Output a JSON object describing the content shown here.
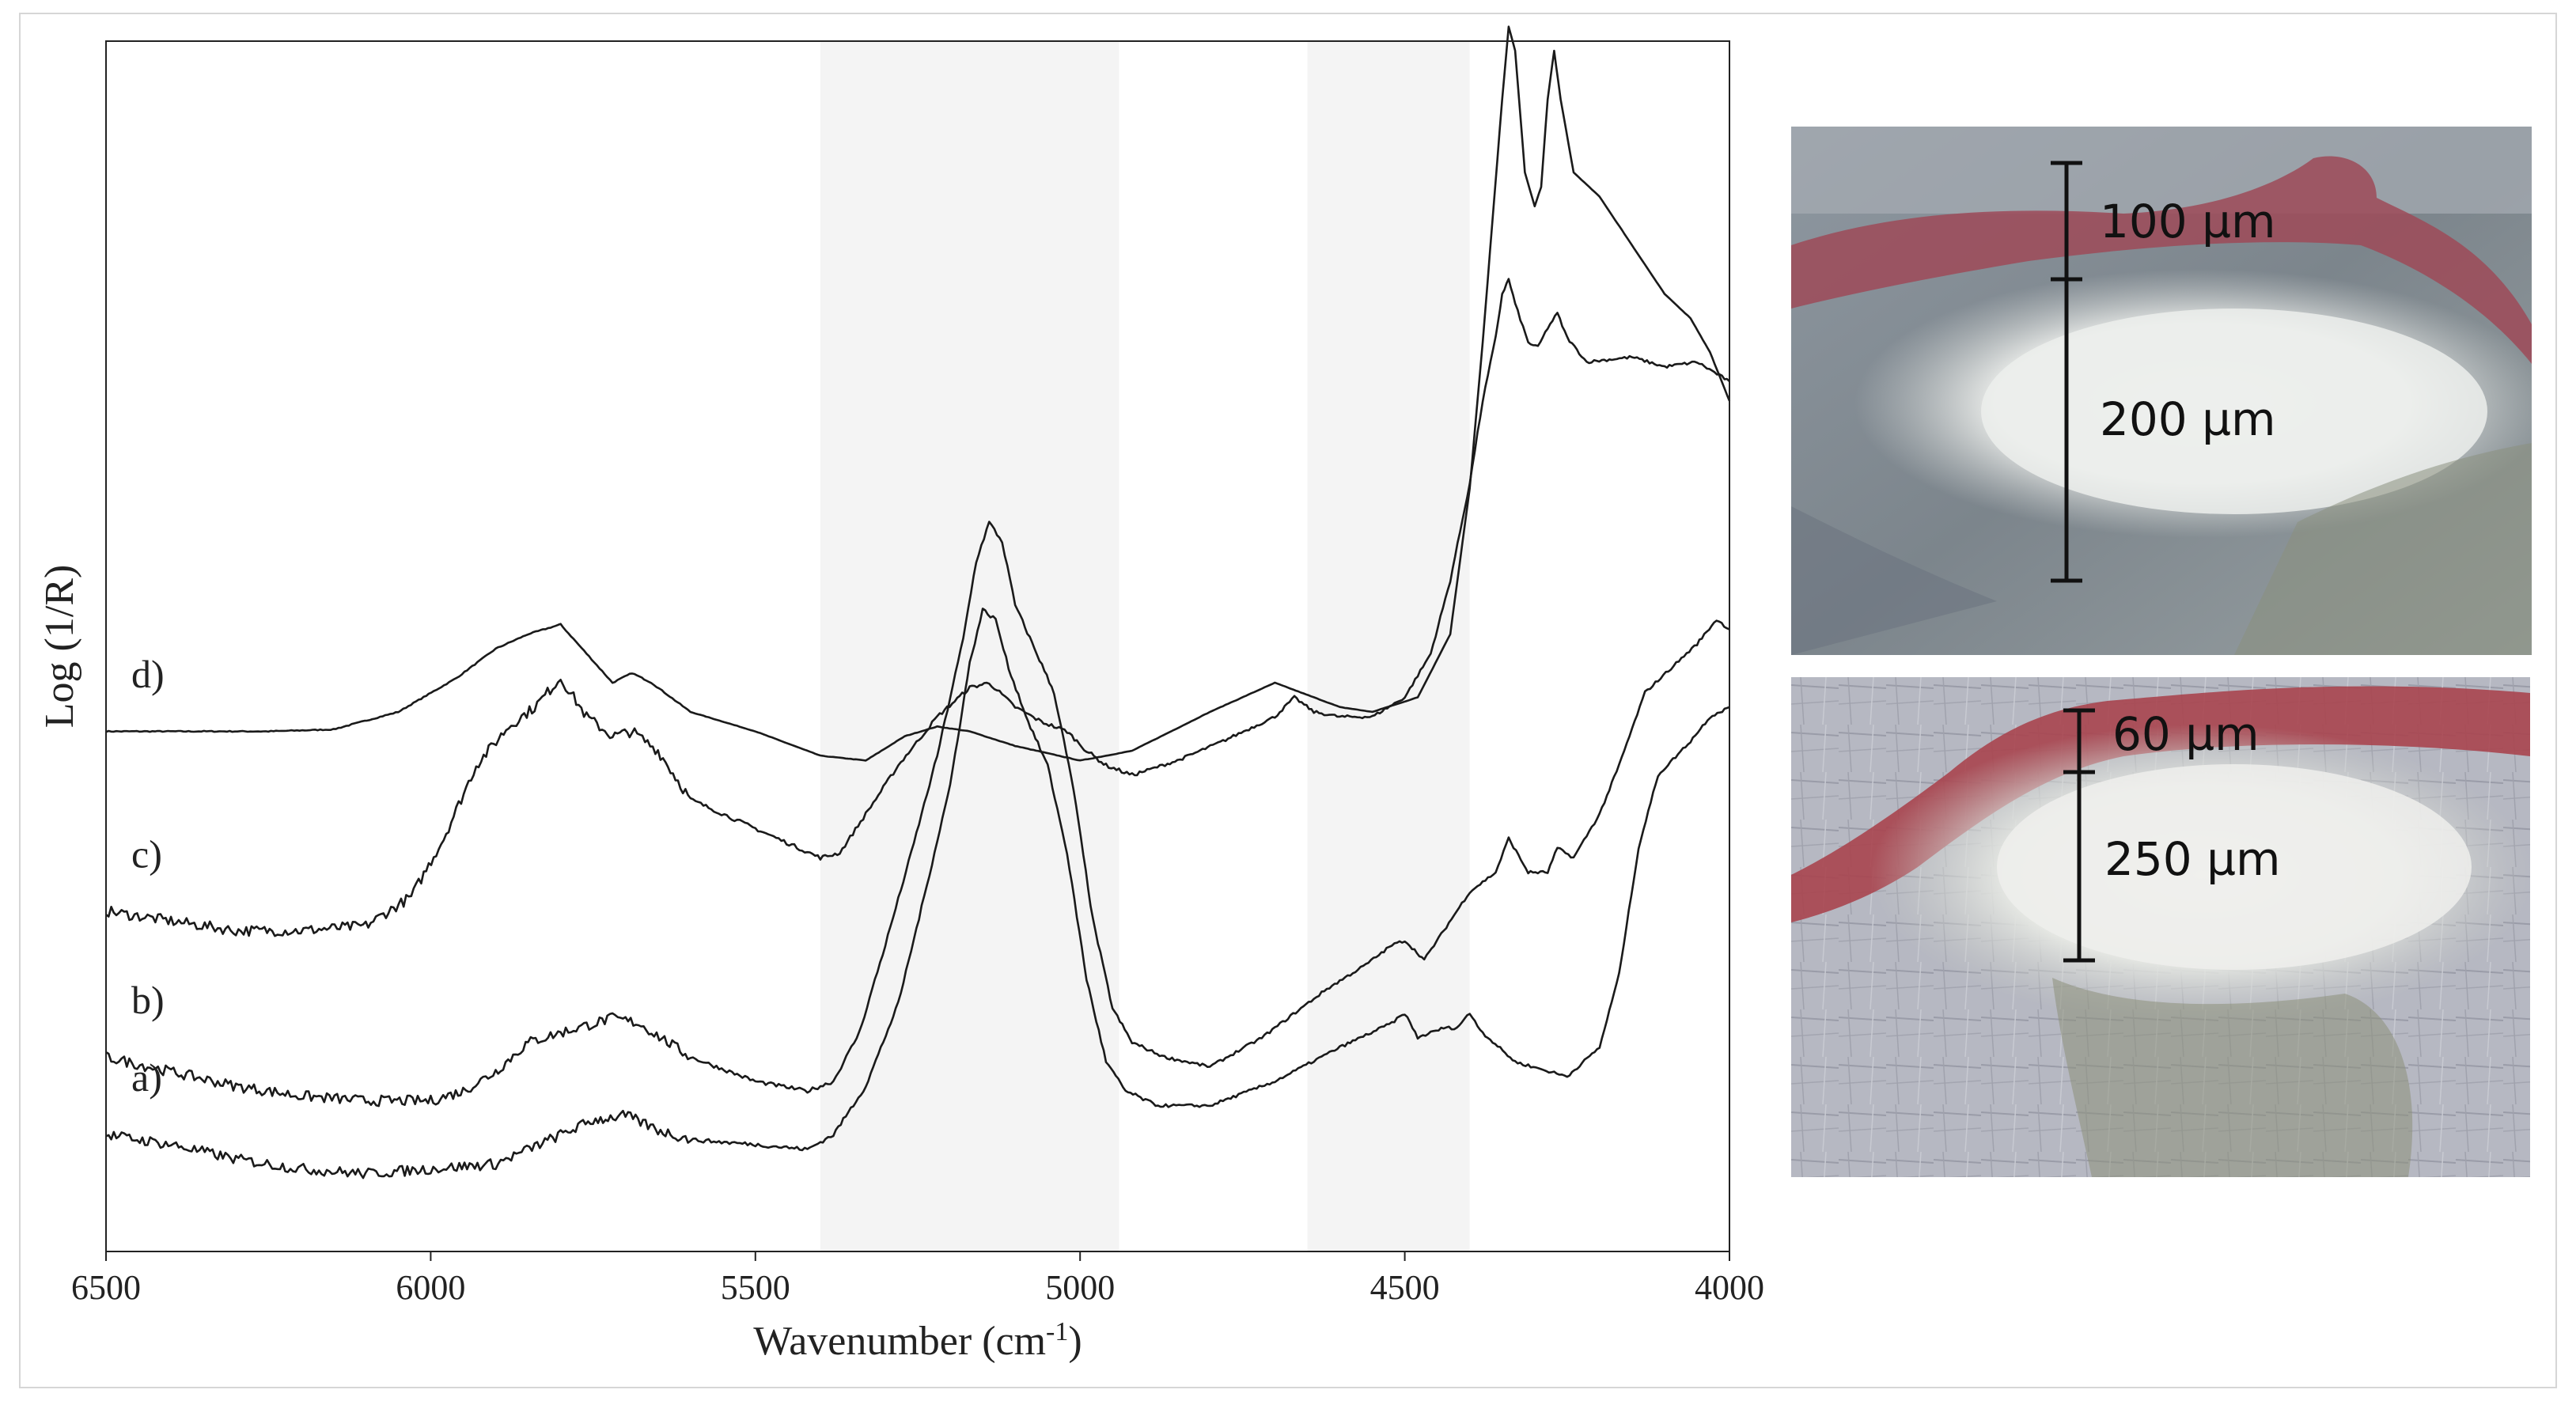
{
  "chart_data": {
    "type": "line",
    "xlabel_main": "Wavenumber (cm",
    "xlabel_sup": "-1",
    "xlabel_close": ")",
    "ylabel": "Log (1/R)",
    "xlim": [
      6500,
      4000
    ],
    "x_reversed": true,
    "x_ticks": [
      "6500",
      "6000",
      "5500",
      "5000",
      "4500",
      "4000"
    ],
    "y_ticks": false,
    "grid": false,
    "shaded_regions": [
      [
        5400,
        4940
      ],
      [
        4650,
        4400
      ]
    ],
    "shade_color": "#f4f4f4",
    "line_color": "#1a1a1a",
    "series": [
      {
        "label": "d)",
        "offset": 0.83,
        "points": [
          [
            6500,
            0
          ],
          [
            6250,
            0
          ],
          [
            6150,
            0.004
          ],
          [
            6050,
            0.04
          ],
          [
            5960,
            0.11
          ],
          [
            5900,
            0.17
          ],
          [
            5850,
            0.2
          ],
          [
            5800,
            0.22
          ],
          [
            5760,
            0.16
          ],
          [
            5720,
            0.1
          ],
          [
            5690,
            0.12
          ],
          [
            5660,
            0.1
          ],
          [
            5600,
            0.04
          ],
          [
            5500,
            0
          ],
          [
            5400,
            -0.05
          ],
          [
            5330,
            -0.06
          ],
          [
            5270,
            -0.01
          ],
          [
            5220,
            0.01
          ],
          [
            5170,
            0
          ],
          [
            5100,
            -0.03
          ],
          [
            5000,
            -0.06
          ],
          [
            4920,
            -0.04
          ],
          [
            4800,
            0.04
          ],
          [
            4700,
            0.1
          ],
          [
            4660,
            0.08
          ],
          [
            4600,
            0.05
          ],
          [
            4550,
            0.04
          ],
          [
            4480,
            0.07
          ],
          [
            4430,
            0.2
          ],
          [
            4400,
            0.5
          ],
          [
            4380,
            0.8
          ],
          [
            4365,
            1.05
          ],
          [
            4350,
            1.3
          ],
          [
            4340,
            1.45
          ],
          [
            4330,
            1.4
          ],
          [
            4315,
            1.15
          ],
          [
            4300,
            1.08
          ],
          [
            4290,
            1.12
          ],
          [
            4280,
            1.3
          ],
          [
            4270,
            1.4
          ],
          [
            4260,
            1.3
          ],
          [
            4240,
            1.15
          ],
          [
            4200,
            1.1
          ],
          [
            4150,
            1.0
          ],
          [
            4100,
            0.9
          ],
          [
            4060,
            0.85
          ],
          [
            4030,
            0.78
          ],
          [
            4000,
            0.68
          ]
        ]
      },
      {
        "label": "c)",
        "offset": 0.46,
        "points": [
          [
            6500,
            0
          ],
          [
            6400,
            -0.02
          ],
          [
            6300,
            -0.04
          ],
          [
            6200,
            -0.04
          ],
          [
            6100,
            -0.03
          ],
          [
            6030,
            0.03
          ],
          [
            5980,
            0.15
          ],
          [
            5930,
            0.3
          ],
          [
            5880,
            0.38
          ],
          [
            5840,
            0.42
          ],
          [
            5800,
            0.48
          ],
          [
            5760,
            0.4
          ],
          [
            5720,
            0.36
          ],
          [
            5690,
            0.37
          ],
          [
            5650,
            0.33
          ],
          [
            5600,
            0.23
          ],
          [
            5500,
            0.17
          ],
          [
            5400,
            0.11
          ],
          [
            5370,
            0.12
          ],
          [
            5330,
            0.2
          ],
          [
            5280,
            0.3
          ],
          [
            5220,
            0.4
          ],
          [
            5170,
            0.46
          ],
          [
            5140,
            0.47
          ],
          [
            5100,
            0.42
          ],
          [
            5060,
            0.39
          ],
          [
            5020,
            0.37
          ],
          [
            4990,
            0.33
          ],
          [
            4960,
            0.3
          ],
          [
            4920,
            0.28
          ],
          [
            4850,
            0.31
          ],
          [
            4780,
            0.35
          ],
          [
            4700,
            0.4
          ],
          [
            4670,
            0.44
          ],
          [
            4640,
            0.41
          ],
          [
            4600,
            0.4
          ],
          [
            4550,
            0.4
          ],
          [
            4500,
            0.44
          ],
          [
            4460,
            0.53
          ],
          [
            4430,
            0.68
          ],
          [
            4400,
            0.88
          ],
          [
            4380,
            1.05
          ],
          [
            4360,
            1.18
          ],
          [
            4350,
            1.27
          ],
          [
            4340,
            1.3
          ],
          [
            4330,
            1.25
          ],
          [
            4310,
            1.17
          ],
          [
            4295,
            1.16
          ],
          [
            4280,
            1.2
          ],
          [
            4265,
            1.23
          ],
          [
            4250,
            1.18
          ],
          [
            4220,
            1.13
          ],
          [
            4150,
            1.14
          ],
          [
            4100,
            1.12
          ],
          [
            4050,
            1.13
          ],
          [
            4000,
            1.09
          ]
        ]
      },
      {
        "label": "b)",
        "offset": 0.16,
        "points": [
          [
            6500,
            0
          ],
          [
            6400,
            -0.03
          ],
          [
            6300,
            -0.06
          ],
          [
            6200,
            -0.08
          ],
          [
            6100,
            -0.09
          ],
          [
            6000,
            -0.09
          ],
          [
            5950,
            -0.07
          ],
          [
            5900,
            -0.03
          ],
          [
            5850,
            0.03
          ],
          [
            5800,
            0.05
          ],
          [
            5720,
            0.08
          ],
          [
            5680,
            0.07
          ],
          [
            5600,
            0.0
          ],
          [
            5500,
            -0.05
          ],
          [
            5420,
            -0.07
          ],
          [
            5380,
            -0.05
          ],
          [
            5340,
            0.05
          ],
          [
            5300,
            0.23
          ],
          [
            5260,
            0.42
          ],
          [
            5220,
            0.62
          ],
          [
            5180,
            0.86
          ],
          [
            5160,
            1.02
          ],
          [
            5140,
            1.1
          ],
          [
            5120,
            1.06
          ],
          [
            5100,
            0.93
          ],
          [
            5070,
            0.84
          ],
          [
            5040,
            0.75
          ],
          [
            5010,
            0.55
          ],
          [
            4980,
            0.28
          ],
          [
            4950,
            0.1
          ],
          [
            4920,
            0.03
          ],
          [
            4870,
            0.0
          ],
          [
            4800,
            -0.02
          ],
          [
            4720,
            0.04
          ],
          [
            4620,
            0.14
          ],
          [
            4560,
            0.19
          ],
          [
            4520,
            0.23
          ],
          [
            4500,
            0.24
          ],
          [
            4470,
            0.2
          ],
          [
            4440,
            0.26
          ],
          [
            4400,
            0.34
          ],
          [
            4360,
            0.38
          ],
          [
            4340,
            0.45
          ],
          [
            4310,
            0.38
          ],
          [
            4280,
            0.38
          ],
          [
            4265,
            0.43
          ],
          [
            4240,
            0.41
          ],
          [
            4200,
            0.5
          ],
          [
            4170,
            0.6
          ],
          [
            4130,
            0.75
          ],
          [
            4090,
            0.8
          ],
          [
            4050,
            0.85
          ],
          [
            4020,
            0.9
          ],
          [
            4000,
            0.88
          ]
        ]
      },
      {
        "label": "a)",
        "offset": 0.0,
        "points": [
          [
            6500,
            0
          ],
          [
            6400,
            -0.02
          ],
          [
            6300,
            -0.05
          ],
          [
            6200,
            -0.07
          ],
          [
            6100,
            -0.08
          ],
          [
            6000,
            -0.07
          ],
          [
            5900,
            -0.06
          ],
          [
            5800,
            0.0
          ],
          [
            5750,
            0.03
          ],
          [
            5700,
            0.04
          ],
          [
            5650,
            0.01
          ],
          [
            5600,
            -0.01
          ],
          [
            5500,
            -0.02
          ],
          [
            5420,
            -0.03
          ],
          [
            5380,
            0.0
          ],
          [
            5330,
            0.1
          ],
          [
            5280,
            0.27
          ],
          [
            5240,
            0.49
          ],
          [
            5200,
            0.72
          ],
          [
            5170,
            0.97
          ],
          [
            5150,
            1.08
          ],
          [
            5130,
            1.06
          ],
          [
            5110,
            0.96
          ],
          [
            5080,
            0.85
          ],
          [
            5050,
            0.76
          ],
          [
            5020,
            0.58
          ],
          [
            4990,
            0.32
          ],
          [
            4960,
            0.15
          ],
          [
            4930,
            0.09
          ],
          [
            4880,
            0.06
          ],
          [
            4800,
            0.06
          ],
          [
            4700,
            0.11
          ],
          [
            4600,
            0.18
          ],
          [
            4520,
            0.23
          ],
          [
            4500,
            0.25
          ],
          [
            4480,
            0.2
          ],
          [
            4440,
            0.22
          ],
          [
            4420,
            0.22
          ],
          [
            4400,
            0.25
          ],
          [
            4380,
            0.21
          ],
          [
            4330,
            0.15
          ],
          [
            4250,
            0.12
          ],
          [
            4200,
            0.18
          ],
          [
            4170,
            0.33
          ],
          [
            4140,
            0.59
          ],
          [
            4110,
            0.74
          ],
          [
            4060,
            0.81
          ],
          [
            4030,
            0.86
          ],
          [
            4000,
            0.88
          ]
        ]
      }
    ]
  },
  "micrographs": {
    "top": {
      "upper_layer": "100 µm",
      "lower_layer": "200 µm"
    },
    "bottom": {
      "upper_layer": "60 µm",
      "lower_layer": "250 µm"
    }
  }
}
